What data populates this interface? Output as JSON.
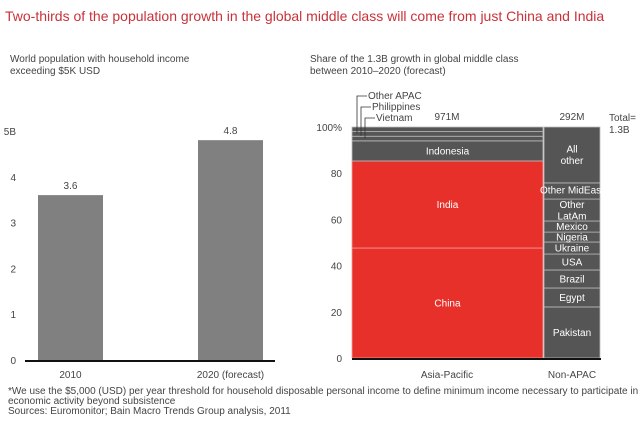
{
  "title": "Two-thirds of the population growth in the global middle class will come from just China and India",
  "footnote_1": "*We use the $5,000 (USD) per year threshold for household disposable personal income to define minimum income necessary to participate in",
  "footnote_2": "economic activity beyond subsistence",
  "sources": "Sources: Euromonitor; Bain Macro Trends Group analysis, 2011",
  "colors": {
    "title": "#c8323a",
    "bar_gray": "#808080",
    "red": "#e8302a",
    "dark": "#555555"
  },
  "chart_data": [
    {
      "type": "bar",
      "title_1": "World population with household income",
      "title_2": "exceeding $5K USD",
      "categories": [
        "2010",
        "2020 (forecast)"
      ],
      "values": [
        3.6,
        4.8
      ],
      "data_labels": [
        "3.6",
        "4.8"
      ],
      "ylim": [
        0,
        5
      ],
      "yticks": [
        0,
        1,
        2,
        3,
        4,
        5
      ],
      "ytick_labels": [
        "0",
        "1",
        "2",
        "3",
        "4",
        "5B"
      ]
    },
    {
      "type": "bar",
      "subtype": "marimekko",
      "title_1": "Share of the 1.3B growth in global middle class",
      "title_2": "between 2010–2020 (forecast)",
      "ylim": [
        0,
        100
      ],
      "yticks": [
        0,
        20,
        40,
        60,
        80,
        100
      ],
      "ytick_labels": [
        "0",
        "20",
        "40",
        "60",
        "80",
        "100%"
      ],
      "total_label_1": "Total=",
      "total_label_2": "1.3B",
      "columns": [
        {
          "name": "Asia-Pacific",
          "total": 971,
          "total_label": "971M",
          "color": "#e8302a",
          "segments": [
            {
              "name": "China",
              "from": 0,
              "to": 47.6,
              "color": "#e8302a"
            },
            {
              "name": "India",
              "from": 47.6,
              "to": 85.3,
              "color": "#e8302a"
            },
            {
              "name": "Indonesia",
              "from": 85.3,
              "to": 94,
              "color": "#555555"
            },
            {
              "name": "Vietnam",
              "from": 94,
              "to": 96,
              "color": "#555555",
              "callout": true
            },
            {
              "name": "Philippines",
              "from": 96,
              "to": 98,
              "color": "#555555",
              "callout": true
            },
            {
              "name": "Other APAC",
              "from": 98,
              "to": 100,
              "color": "#555555",
              "callout": true
            }
          ]
        },
        {
          "name": "Non-APAC",
          "total": 292,
          "total_label": "292M",
          "color": "#555555",
          "segments": [
            {
              "name": "Pakistan",
              "from": 0,
              "to": 22.1
            },
            {
              "name": "Egypt",
              "from": 22.1,
              "to": 30.3
            },
            {
              "name": "Brazil",
              "from": 30.3,
              "to": 38.1
            },
            {
              "name": "USA",
              "from": 38.1,
              "to": 45.0
            },
            {
              "name": "Ukraine",
              "from": 45.0,
              "to": 50.2
            },
            {
              "name": "Nigeria",
              "from": 50.2,
              "to": 54.5
            },
            {
              "name": "Mexico",
              "from": 54.5,
              "to": 59.3
            },
            {
              "name": "Other LatAm",
              "lines": [
                "Other",
                "LatAm"
              ],
              "from": 59.3,
              "to": 68.8
            },
            {
              "name": "Other MidEast",
              "from": 68.8,
              "to": 75.8
            },
            {
              "name": "All other",
              "lines": [
                "All",
                "other"
              ],
              "from": 75.8,
              "to": 100
            }
          ]
        }
      ]
    }
  ]
}
